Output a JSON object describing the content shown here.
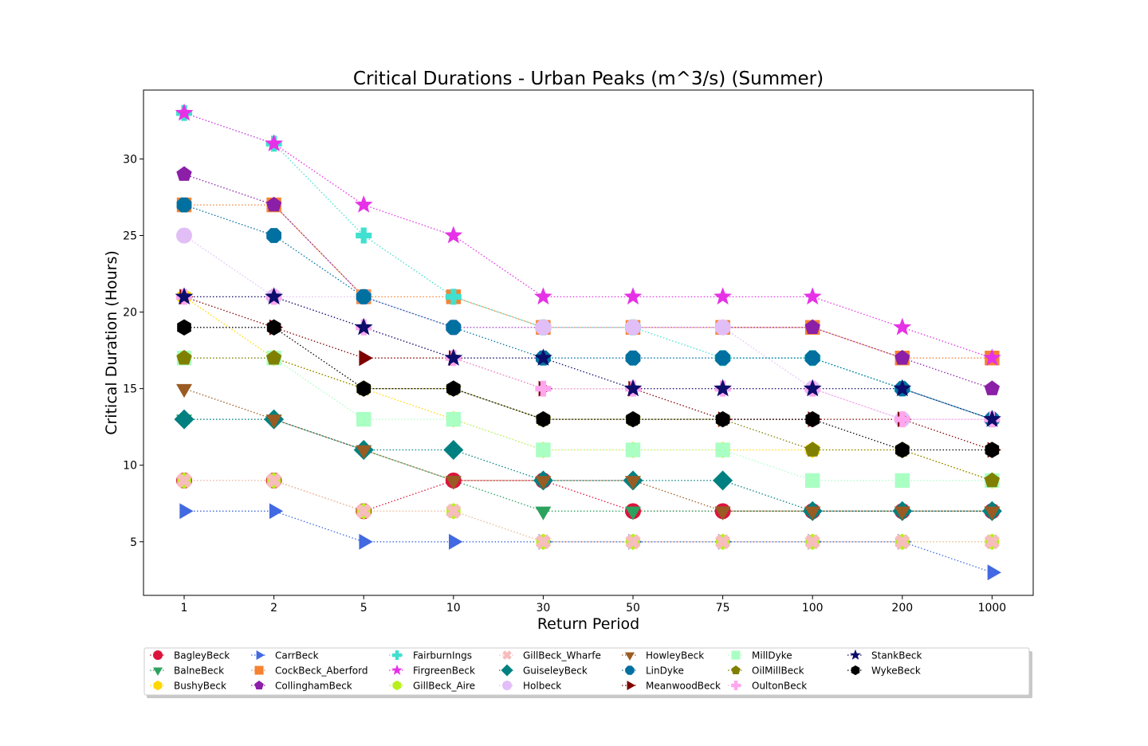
{
  "chart_data": {
    "type": "line",
    "title": "Critical Durations - Urban Peaks (m^3/s) (Summer)",
    "xlabel": "Return Period",
    "ylabel": "Critical Duration (Hours)",
    "categories": [
      "1",
      "2",
      "5",
      "10",
      "30",
      "50",
      "75",
      "100",
      "200",
      "1000"
    ],
    "ylim": [
      1.5,
      34.5
    ],
    "yticks": [
      5,
      10,
      15,
      20,
      25,
      30
    ],
    "grid": false,
    "legend_position": "bottom",
    "series": [
      {
        "name": "BagleyBeck",
        "color": "#dc143c",
        "marker": "circle",
        "values": [
          9,
          9,
          7,
          9,
          9,
          7,
          7,
          7,
          7,
          7
        ]
      },
      {
        "name": "BalneBeck",
        "color": "#2ca25f",
        "marker": "triangle-down",
        "values": [
          13,
          13,
          11,
          9,
          7,
          7,
          7,
          7,
          7,
          7
        ]
      },
      {
        "name": "BushyBeck",
        "color": "#ffd700",
        "marker": "hexagon",
        "values": [
          21,
          17,
          15,
          13,
          11,
          11,
          11,
          11,
          11,
          9
        ]
      },
      {
        "name": "CarrBeck",
        "color": "#4169e1",
        "marker": "triangle-right",
        "values": [
          7,
          7,
          5,
          5,
          5,
          5,
          5,
          5,
          5,
          3
        ]
      },
      {
        "name": "CockBeck_Aberford",
        "color": "#f58231",
        "marker": "square",
        "values": [
          27,
          27,
          21,
          21,
          19,
          19,
          19,
          19,
          17,
          17
        ]
      },
      {
        "name": "CollinghamBeck",
        "color": "#8b1fa8",
        "marker": "pentagon",
        "values": [
          29,
          27,
          21,
          19,
          19,
          19,
          19,
          19,
          17,
          15
        ]
      },
      {
        "name": "FairburnIngs",
        "color": "#40e0d0",
        "marker": "plus",
        "values": [
          33,
          31,
          25,
          21,
          19,
          19,
          17,
          17,
          15,
          13
        ]
      },
      {
        "name": "FirgreenBeck",
        "color": "#e632e6",
        "marker": "star",
        "values": [
          33,
          31,
          27,
          25,
          21,
          21,
          21,
          21,
          19,
          17
        ]
      },
      {
        "name": "GillBeck_Aire",
        "color": "#b8f01e",
        "marker": "hexagon",
        "values": [
          9,
          9,
          7,
          7,
          5,
          5,
          5,
          5,
          5,
          5
        ]
      },
      {
        "name": "GillBeck_Wharfe",
        "color": "#f7bcbc",
        "marker": "x",
        "values": [
          9,
          9,
          7,
          7,
          5,
          5,
          5,
          5,
          5,
          5
        ]
      },
      {
        "name": "GuiseleyBeck",
        "color": "#008080",
        "marker": "diamond",
        "values": [
          13,
          13,
          11,
          11,
          9,
          9,
          9,
          7,
          7,
          7
        ]
      },
      {
        "name": "Holbeck",
        "color": "#e2bef7",
        "marker": "circle",
        "values": [
          25,
          21,
          21,
          19,
          19,
          19,
          19,
          15,
          13,
          13
        ]
      },
      {
        "name": "HowleyBeck",
        "color": "#9a5b22",
        "marker": "triangle-down",
        "values": [
          15,
          13,
          11,
          9,
          9,
          9,
          7,
          7,
          7,
          7
        ]
      },
      {
        "name": "LinDyke",
        "color": "#0070a0",
        "marker": "octagon",
        "values": [
          27,
          25,
          21,
          19,
          17,
          17,
          17,
          17,
          15,
          13
        ]
      },
      {
        "name": "MeanwoodBeck",
        "color": "#800000",
        "marker": "triangle-right",
        "values": [
          21,
          19,
          17,
          17,
          15,
          15,
          13,
          13,
          13,
          11
        ]
      },
      {
        "name": "MillDyke",
        "color": "#aaffc3",
        "marker": "square",
        "values": [
          17,
          17,
          13,
          13,
          11,
          11,
          11,
          9,
          9,
          9
        ]
      },
      {
        "name": "OilMillBeck",
        "color": "#808000",
        "marker": "pentagon",
        "values": [
          17,
          17,
          15,
          15,
          13,
          13,
          13,
          11,
          11,
          9
        ]
      },
      {
        "name": "OultonBeck",
        "color": "#ffa6ee",
        "marker": "plus",
        "values": [
          21,
          21,
          19,
          17,
          15,
          15,
          15,
          15,
          13,
          13
        ]
      },
      {
        "name": "StankBeck",
        "color": "#0d0d6b",
        "marker": "star",
        "values": [
          21,
          21,
          19,
          17,
          17,
          15,
          15,
          15,
          15,
          13
        ]
      },
      {
        "name": "WykeBeck",
        "color": "#000000",
        "marker": "hexagon",
        "values": [
          19,
          19,
          15,
          15,
          13,
          13,
          13,
          13,
          11,
          11
        ]
      }
    ]
  }
}
